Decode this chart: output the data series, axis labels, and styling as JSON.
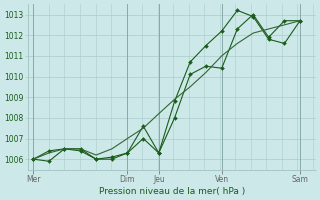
{
  "background_color": "#cce8e8",
  "grid_color": "#aacccc",
  "line_color_dark": "#1a5c1a",
  "line_color_light": "#336633",
  "xlabel_text": "Pression niveau de la mer( hPa )",
  "ylim": [
    1005.5,
    1013.5
  ],
  "yticks": [
    1006,
    1007,
    1008,
    1009,
    1010,
    1011,
    1012,
    1013
  ],
  "x_day_labels": [
    "Mer",
    "Dim",
    "Jeu",
    "Ven",
    "Sam"
  ],
  "x_day_positions": [
    0.0,
    3.33,
    4.44,
    6.67,
    9.44
  ],
  "xlim": [
    -0.2,
    10.0
  ],
  "vline_positions": [
    0.0,
    3.33,
    4.44,
    6.67,
    9.44
  ],
  "series1_x": [
    0.0,
    0.55,
    1.1,
    1.67,
    2.22,
    2.78,
    3.33,
    3.89,
    4.44,
    5.0,
    5.55,
    6.11,
    6.67,
    7.22,
    7.78,
    8.33,
    8.89,
    9.44
  ],
  "series1_y": [
    1006.0,
    1005.9,
    1006.5,
    1006.5,
    1006.0,
    1006.1,
    1006.3,
    1007.6,
    1006.3,
    1008.8,
    1010.7,
    1011.5,
    1012.2,
    1013.2,
    1012.9,
    1011.8,
    1011.6,
    1012.7
  ],
  "series2_x": [
    0.0,
    0.55,
    1.1,
    1.67,
    2.22,
    2.78,
    3.33,
    3.89,
    4.44,
    5.0,
    5.55,
    6.11,
    6.67,
    7.22,
    7.78,
    8.33,
    8.89,
    9.44
  ],
  "series2_y": [
    1006.0,
    1006.4,
    1006.5,
    1006.4,
    1006.0,
    1006.0,
    1006.3,
    1007.0,
    1006.3,
    1008.0,
    1010.1,
    1010.5,
    1010.4,
    1012.3,
    1013.0,
    1011.9,
    1012.7,
    1012.7
  ],
  "series3_x": [
    0.0,
    0.55,
    1.1,
    1.67,
    2.22,
    2.78,
    3.33,
    3.89,
    4.44,
    5.0,
    5.55,
    6.11,
    6.67,
    7.22,
    7.78,
    8.33,
    8.89,
    9.44
  ],
  "series3_y": [
    1006.0,
    1006.3,
    1006.5,
    1006.5,
    1006.2,
    1006.5,
    1007.0,
    1007.5,
    1008.2,
    1008.9,
    1009.5,
    1010.2,
    1011.0,
    1011.6,
    1012.1,
    1012.3,
    1012.5,
    1012.7
  ]
}
